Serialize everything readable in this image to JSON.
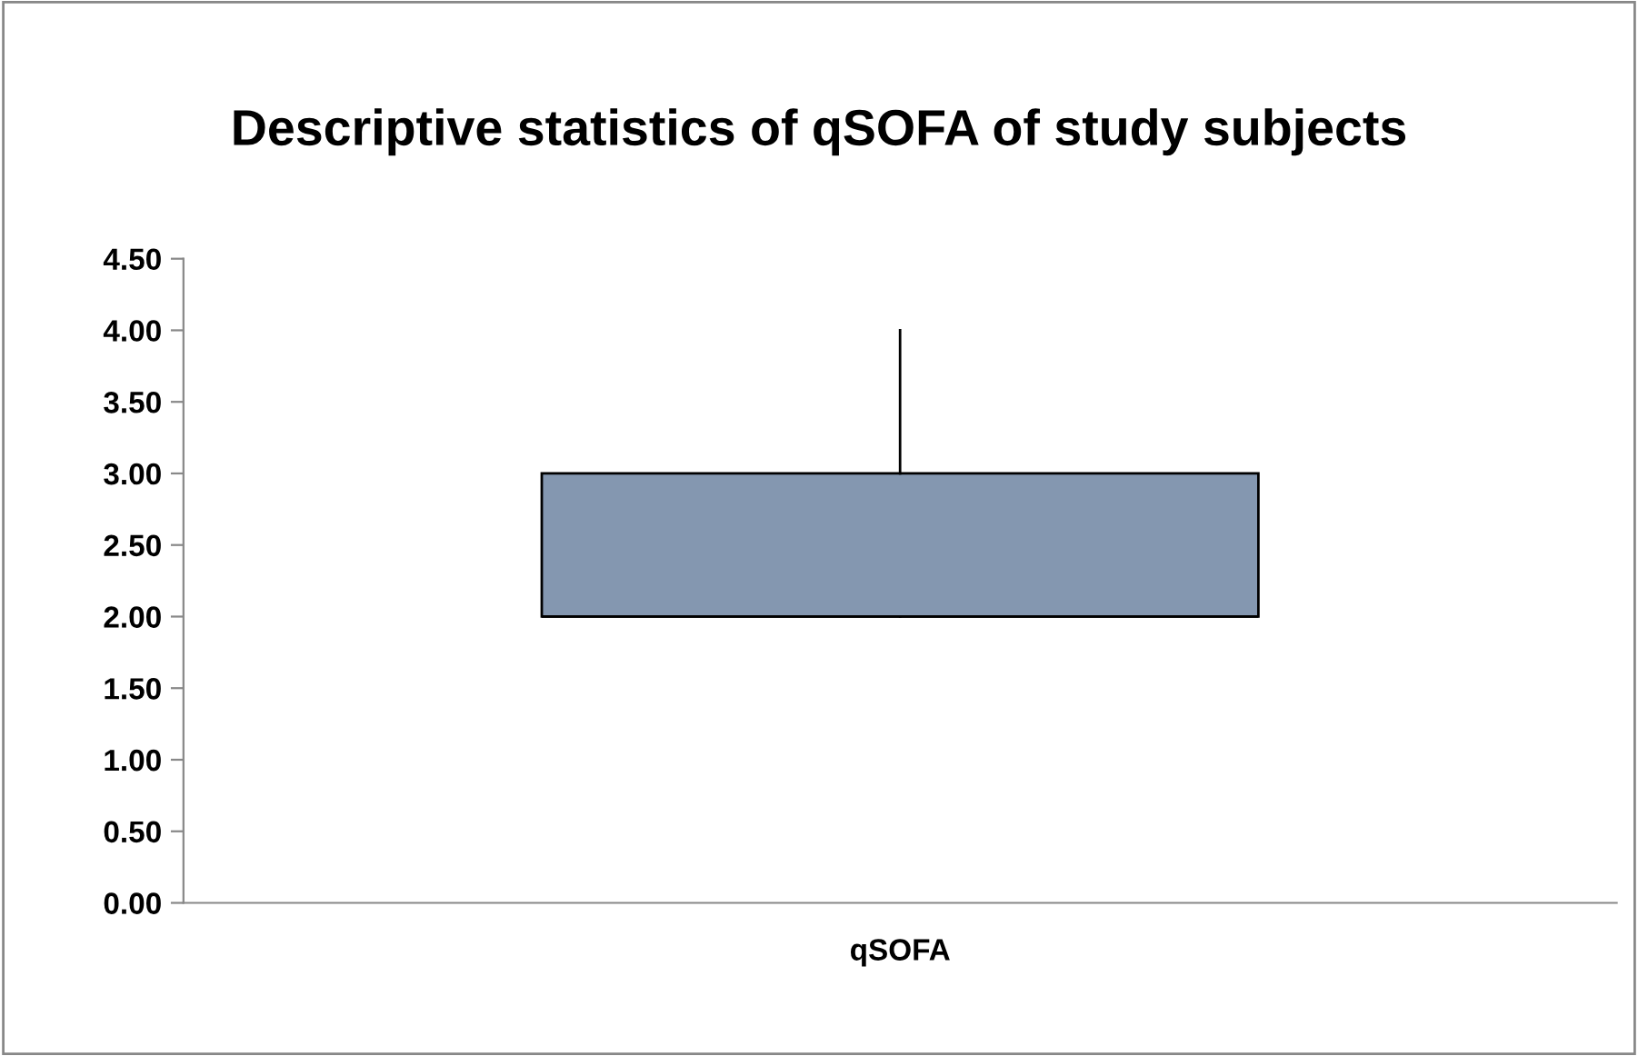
{
  "chart_data": {
    "type": "box",
    "title": "Descriptive statistics of qSOFA of study subjects",
    "categories": [
      "qSOFA"
    ],
    "boxes": [
      {
        "low": 2,
        "q1": 2,
        "median": 2,
        "q3": 3,
        "high": 4
      }
    ],
    "color": "#8497b0",
    "ylim": [
      0,
      4.5
    ],
    "yticks": [
      {
        "value": 0,
        "label": "0.00"
      },
      {
        "value": 0.5,
        "label": "0.50"
      },
      {
        "value": 1,
        "label": "1.00"
      },
      {
        "value": 1.5,
        "label": "1.50"
      },
      {
        "value": 2,
        "label": "2.00"
      },
      {
        "value": 2.5,
        "label": "2.50"
      },
      {
        "value": 3,
        "label": "3.00"
      },
      {
        "value": 3.5,
        "label": "3.50"
      },
      {
        "value": 4,
        "label": "4.00"
      },
      {
        "value": 4.5,
        "label": "4.50"
      }
    ],
    "grid": false
  }
}
